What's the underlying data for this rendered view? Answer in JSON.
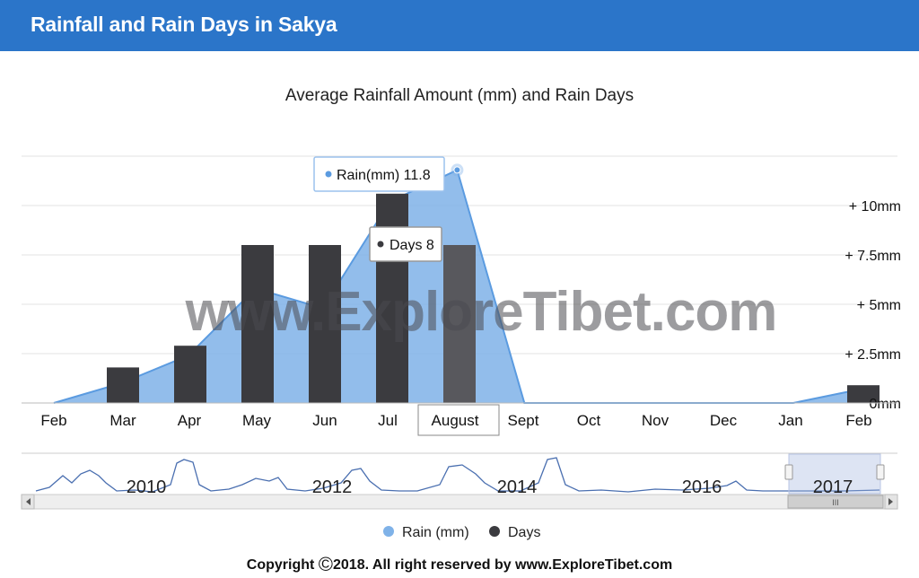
{
  "header": {
    "title": "Rainfall and Rain Days in Sakya"
  },
  "colors": {
    "header": "#2b75c9",
    "rain": "#7fb2e8",
    "rain_line": "#5b9be0",
    "days": "#3b3b3f",
    "days_hover": "#58585d"
  },
  "chart_data": {
    "type": "bar+area",
    "title": "Average Rainfall Amount (mm) and Rain Days",
    "categories": [
      "Feb",
      "Mar",
      "Apr",
      "May",
      "Jun",
      "Jul",
      "August",
      "Sept",
      "Oct",
      "Nov",
      "Dec",
      "Jan",
      "Feb"
    ],
    "series": [
      {
        "name": "Rain (mm)",
        "type": "area",
        "values": [
          0,
          1.0,
          2.4,
          5.8,
          4.8,
          10.2,
          11.8,
          0,
          0,
          0,
          0,
          0,
          0.7
        ]
      },
      {
        "name": "Days",
        "type": "column",
        "values": [
          0,
          1.8,
          2.9,
          8,
          8,
          11,
          8,
          0,
          0,
          0,
          0,
          0,
          0.9
        ]
      }
    ],
    "y_axis_ticks": [
      "0mm",
      "+ 2.5mm",
      "+ 5mm",
      "+ 7.5mm",
      "+ 10mm"
    ],
    "ylim": [
      0,
      12.5
    ],
    "grid": true,
    "legend_position": "bottom",
    "tooltips": {
      "rain": "Rain(mm) 11.8",
      "days": "Days 8",
      "category": "August"
    },
    "navigator": {
      "years": [
        "2010",
        "2012",
        "2014",
        "2016",
        "2017"
      ],
      "scroll_thumb_label": "III"
    },
    "watermark": "www.ExploreTibet.com"
  },
  "footer": {
    "prefix": "Copyright ",
    "symbol": "©",
    "text": "2018.  All right reserved by www.ExploreTibet.com"
  }
}
